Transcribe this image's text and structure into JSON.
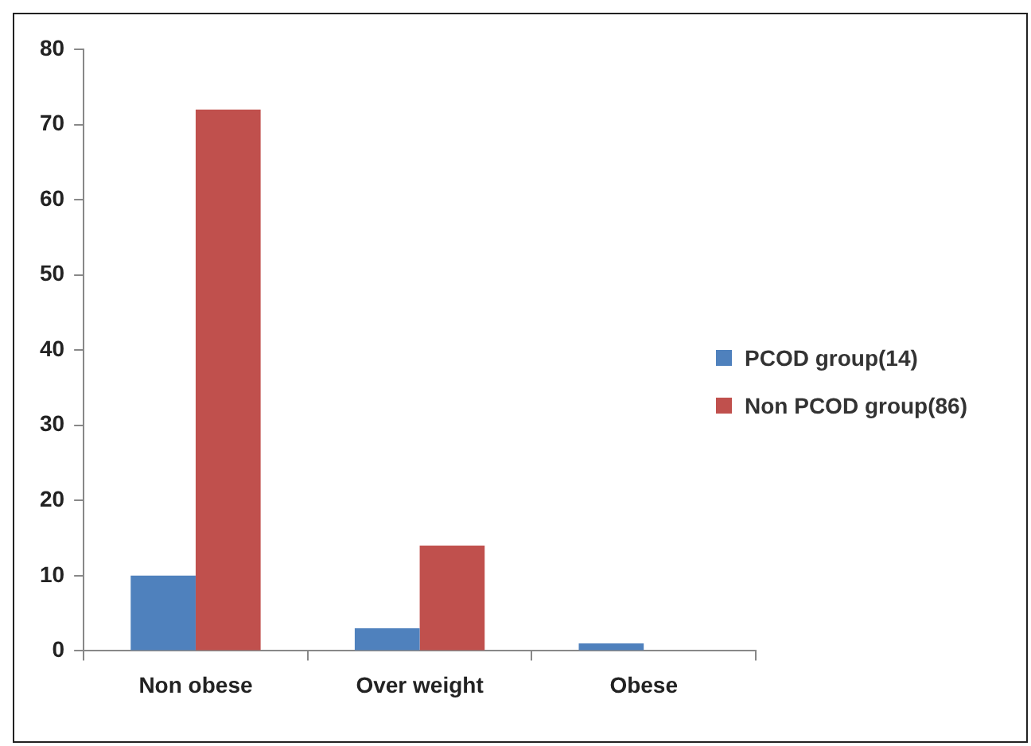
{
  "chart_data": {
    "type": "bar",
    "categories": [
      "Non obese",
      "Over weight",
      "Obese"
    ],
    "series": [
      {
        "name": "PCOD group(14)",
        "color": "#4f81bd",
        "values": [
          10,
          3,
          1
        ]
      },
      {
        "name": "Non PCOD group(86)",
        "color": "#c0504d",
        "values": [
          72,
          14,
          0
        ]
      }
    ],
    "ylim": [
      0,
      80
    ],
    "yticks": [
      0,
      10,
      20,
      30,
      40,
      50,
      60,
      70,
      80
    ],
    "grid": false,
    "legend": "right"
  }
}
